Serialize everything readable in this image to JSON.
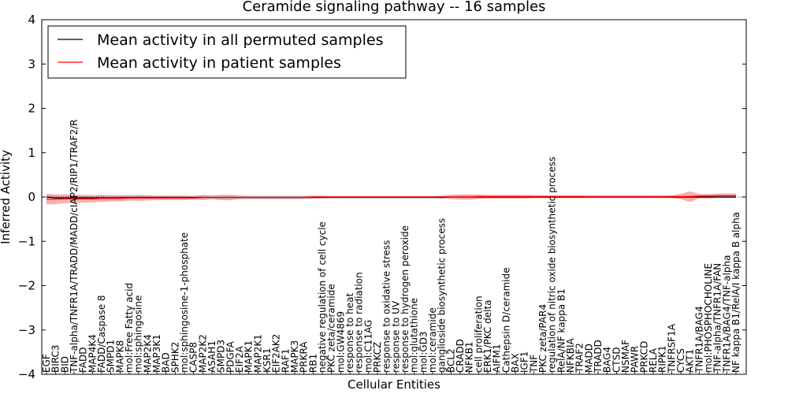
{
  "chart_data": {
    "type": "line",
    "title": "Ceramide signaling pathway -- 16 samples",
    "xlabel": "Cellular Entities",
    "ylabel": "Inferred Activity",
    "ylim": [
      -4,
      4
    ],
    "yticks": [
      -4,
      -3,
      -2,
      -1,
      0,
      1,
      2,
      3,
      4
    ],
    "ytick_labels": [
      "−4",
      "−3",
      "−2",
      "−1",
      "0",
      "1",
      "2",
      "3",
      "4"
    ],
    "legend_position": "upper-left",
    "categories": [
      "EGF",
      "BIRC3",
      "BID",
      "TNF-alpha/TNFR1A/TRADD/MADD/cIAP2/RIP1/TRAF2/R",
      "FADD",
      "MAP4K4",
      "FADD/Caspase 8",
      "SMPD1",
      "MAPK8",
      "mol:Free Fatty acid",
      "mol:sphingosine",
      "MAP2K4",
      "MAP3K1",
      "BAD",
      "SPHK2",
      "mol:sphingosine-1-phosphate",
      "CASP8",
      "MAP2K2",
      "ASAH1",
      "SMPD3",
      "PDGFA",
      "EIF2A",
      "MAPK1",
      "MAP2K1",
      "KSR1",
      "EIF2AK2",
      "RAF1",
      "MAPK3",
      "PRKRA",
      "RB1",
      "negative regulation of cell cycle",
      "PKC zeta/ceramide",
      "mol:GW4869",
      "response to heat",
      "response to radiation",
      "mol:C11AG",
      "PRKCZ",
      "response to oxidative stress",
      "response to UV",
      "response to hydrogen peroxide",
      "mol:glutathione",
      "mol:GD3",
      "mol:ceramide",
      "ganglioside biosynthetic process",
      "BCL2",
      "CRADD",
      "NFKB1",
      "cell proliferation",
      "ERK1/PKC delta",
      "AIFM1",
      "Cathepsin D/ceramide",
      "BAX",
      "IGF1",
      "TNF",
      "PKC zeta/PAR4",
      "regulation of nitric oxide biosynthetic process",
      "RelA/NF kappa B1",
      "NFKBIA",
      "TRAF2",
      "MADD",
      "TRADD",
      "BAG4",
      "CTSD",
      "NSMAF",
      "PAWR",
      "PRKCD",
      "RELA",
      "RIPK1",
      "TNFRSF1A",
      "CYCS",
      "AKT1",
      "TNFR1A/BAG4",
      "mol:PHOSPHOCHOLINE",
      "TNF-alpha/TNFR1A/FAN",
      "TNFR1A/BAG4/TNF-alpha",
      "NF kappa B1/RelA/I kappa B alpha"
    ],
    "series": [
      {
        "name": "Mean activity in all permuted samples",
        "color": "#000000",
        "values": [
          0.0,
          -0.02,
          -0.02,
          -0.02,
          -0.02,
          -0.02,
          -0.02,
          -0.02,
          -0.02,
          -0.01,
          -0.01,
          -0.01,
          -0.01,
          -0.01,
          -0.01,
          -0.01,
          -0.01,
          -0.01,
          -0.01,
          -0.01,
          -0.01,
          -0.01,
          -0.01,
          -0.01,
          -0.01,
          -0.01,
          -0.01,
          -0.01,
          -0.01,
          -0.01,
          -0.01,
          -0.01,
          -0.01,
          -0.01,
          -0.01,
          -0.01,
          -0.01,
          -0.01,
          -0.01,
          -0.01,
          -0.01,
          -0.01,
          -0.01,
          -0.01,
          0.0,
          0.0,
          0.0,
          0.0,
          0.0,
          0.0,
          0.0,
          0.0,
          0.0,
          0.0,
          0.0,
          0.0,
          0.0,
          0.0,
          0.0,
          0.0,
          0.0,
          0.0,
          0.0,
          0.0,
          0.0,
          0.0,
          0.0,
          0.0,
          0.0,
          0.0,
          0.0,
          0.0,
          0.0,
          0.0,
          0.0,
          0.0
        ],
        "band": [
          0.03,
          0.04,
          0.04,
          0.05,
          0.05,
          0.05,
          0.05,
          0.05,
          0.05,
          0.04,
          0.04,
          0.04,
          0.04,
          0.04,
          0.04,
          0.04,
          0.04,
          0.04,
          0.04,
          0.04,
          0.04,
          0.04,
          0.04,
          0.04,
          0.04,
          0.04,
          0.04,
          0.04,
          0.04,
          0.04,
          0.03,
          0.03,
          0.03,
          0.03,
          0.03,
          0.03,
          0.03,
          0.03,
          0.03,
          0.03,
          0.03,
          0.03,
          0.03,
          0.03,
          0.03,
          0.04,
          0.04,
          0.04,
          0.03,
          0.03,
          0.03,
          0.03,
          0.03,
          0.03,
          0.03,
          0.03,
          0.03,
          0.03,
          0.03,
          0.03,
          0.03,
          0.03,
          0.03,
          0.03,
          0.03,
          0.03,
          0.03,
          0.03,
          0.03,
          0.03,
          0.03,
          0.03,
          0.03,
          0.03,
          0.03,
          0.03
        ]
      },
      {
        "name": "Mean activity in patient samples",
        "color": "#ff0000",
        "values": [
          -0.05,
          -0.05,
          -0.04,
          -0.04,
          -0.04,
          -0.04,
          -0.03,
          -0.03,
          -0.03,
          -0.02,
          -0.02,
          -0.02,
          -0.02,
          -0.02,
          -0.02,
          -0.02,
          -0.02,
          -0.01,
          -0.01,
          -0.01,
          -0.01,
          -0.01,
          -0.01,
          -0.01,
          -0.01,
          -0.01,
          -0.01,
          -0.01,
          -0.01,
          0.0,
          0.0,
          0.0,
          0.0,
          0.0,
          0.0,
          0.0,
          0.0,
          0.0,
          0.0,
          0.0,
          0.0,
          0.0,
          0.0,
          0.0,
          0.0,
          0.0,
          0.0,
          0.01,
          0.01,
          0.01,
          0.01,
          0.01,
          0.01,
          0.01,
          0.01,
          0.01,
          0.01,
          0.01,
          0.01,
          0.01,
          0.01,
          0.01,
          0.01,
          0.01,
          0.01,
          0.01,
          0.01,
          0.01,
          0.01,
          0.01,
          0.01,
          0.02,
          0.02,
          0.03,
          0.03,
          0.03
        ],
        "band": [
          0.12,
          0.11,
          0.1,
          0.09,
          0.09,
          0.08,
          0.08,
          0.07,
          0.07,
          0.06,
          0.07,
          0.06,
          0.05,
          0.05,
          0.05,
          0.05,
          0.04,
          0.06,
          0.04,
          0.06,
          0.06,
          0.04,
          0.03,
          0.03,
          0.03,
          0.03,
          0.03,
          0.03,
          0.03,
          0.03,
          0.03,
          0.02,
          0.02,
          0.02,
          0.02,
          0.02,
          0.02,
          0.02,
          0.02,
          0.02,
          0.02,
          0.02,
          0.02,
          0.03,
          0.05,
          0.06,
          0.06,
          0.05,
          0.04,
          0.04,
          0.04,
          0.04,
          0.04,
          0.03,
          0.03,
          0.03,
          0.03,
          0.03,
          0.03,
          0.02,
          0.02,
          0.02,
          0.02,
          0.02,
          0.02,
          0.02,
          0.02,
          0.02,
          0.03,
          0.06,
          0.12,
          0.05,
          0.05,
          0.05,
          0.05,
          0.05
        ]
      }
    ]
  }
}
